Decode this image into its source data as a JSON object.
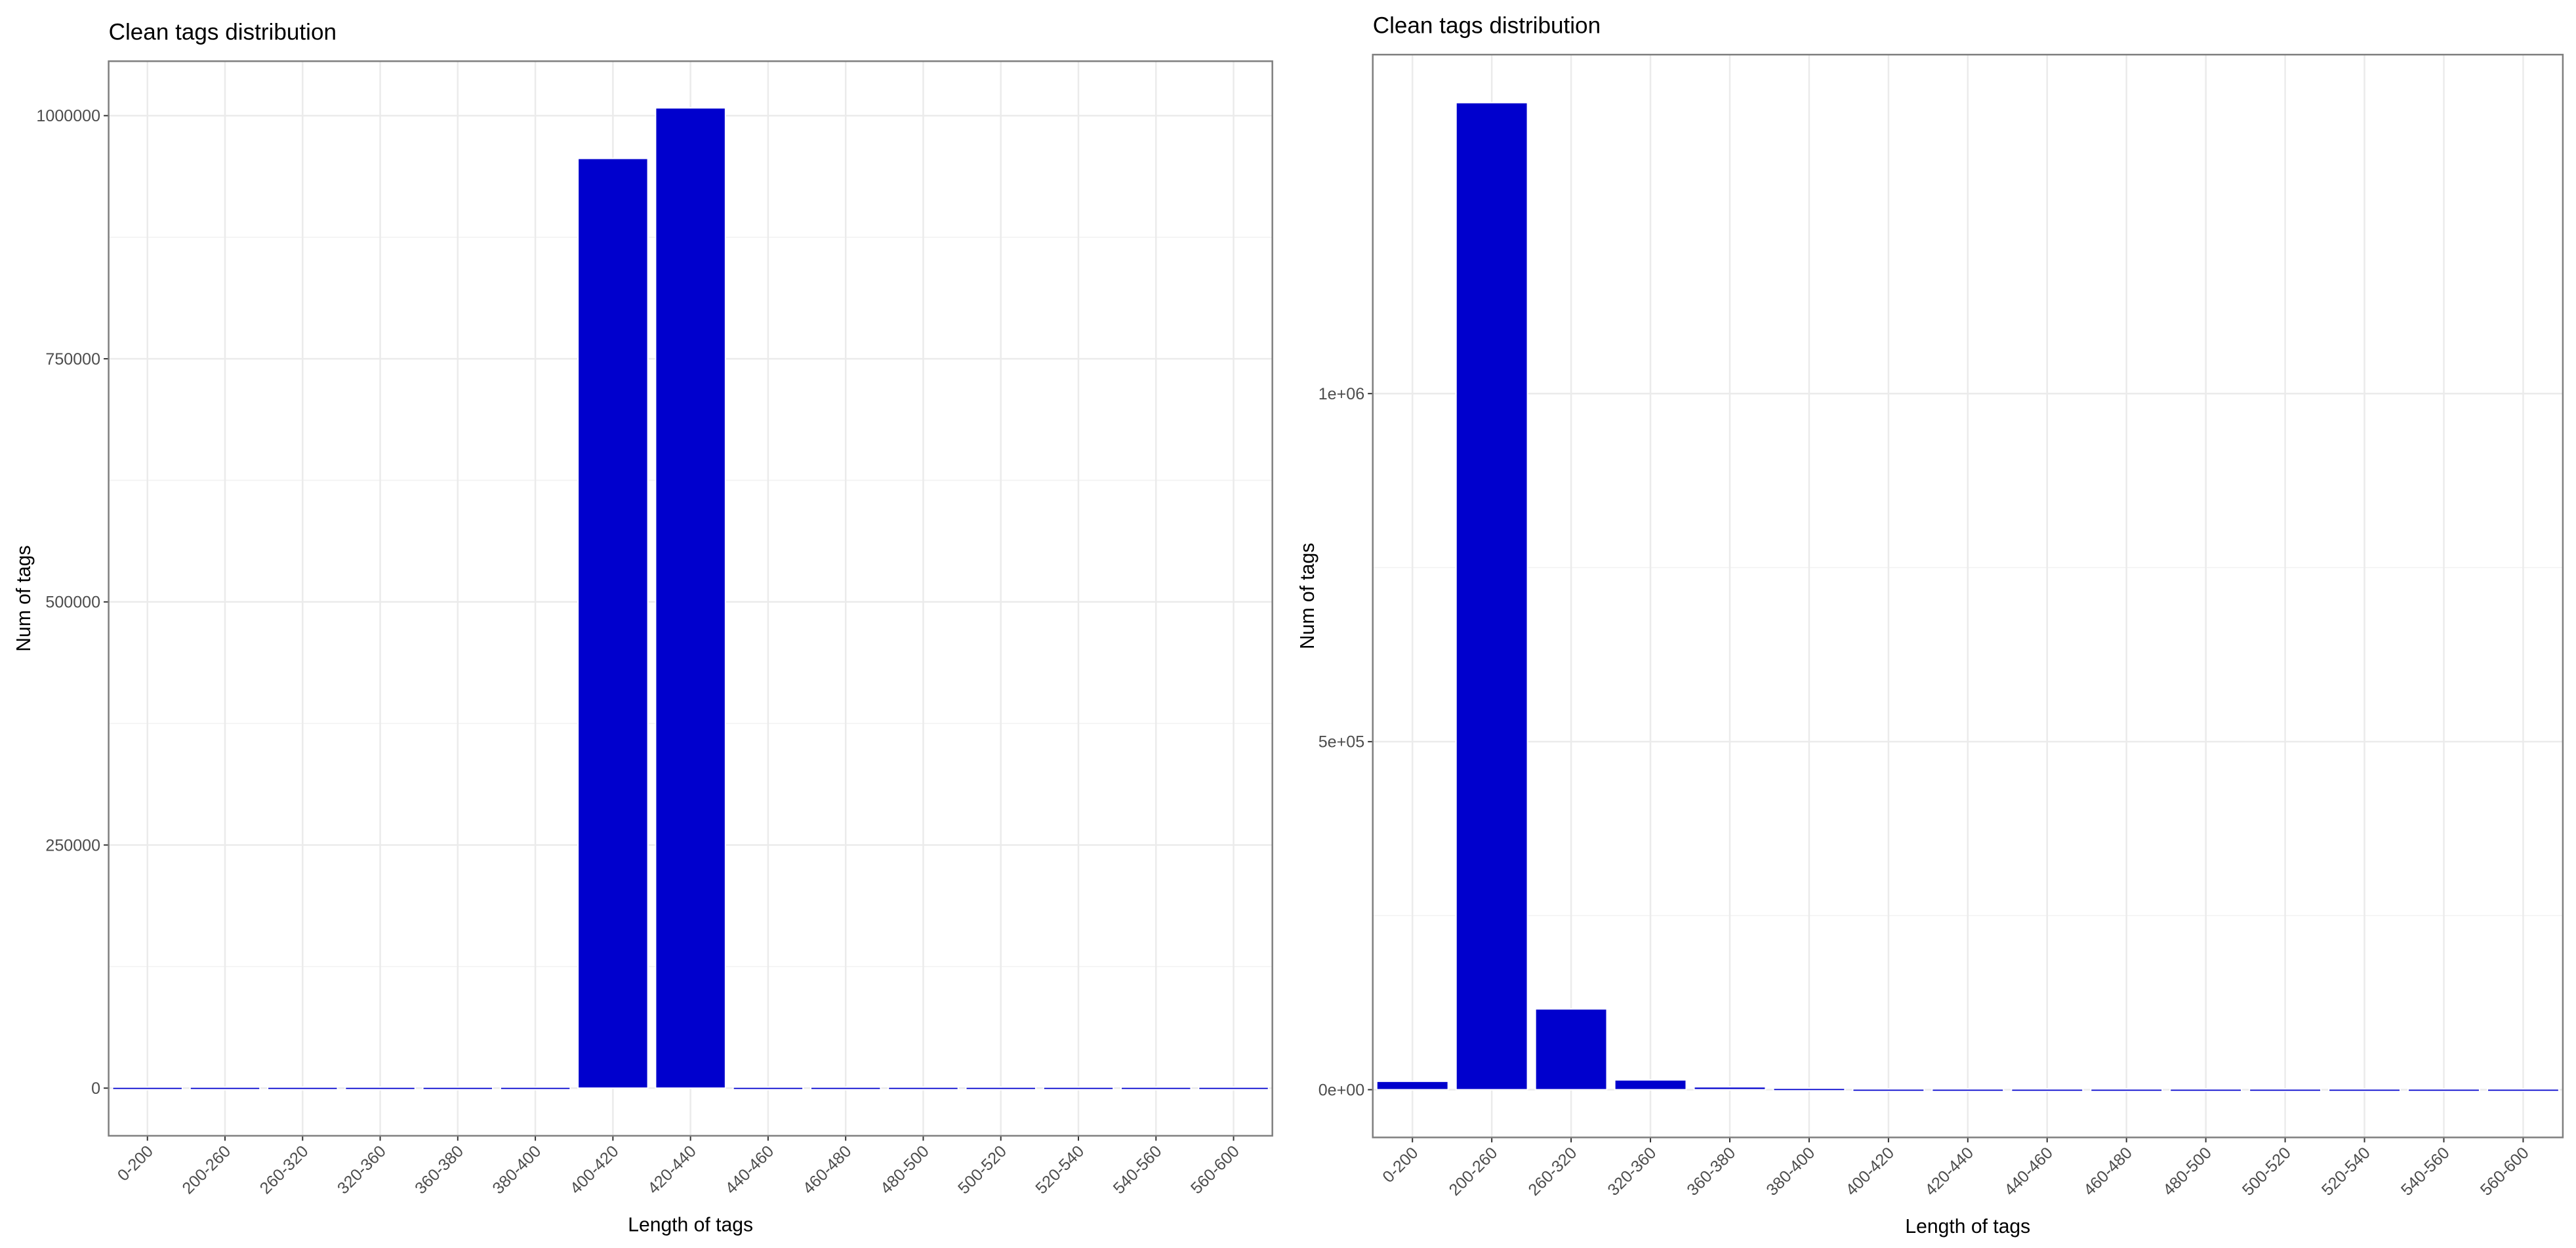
{
  "chart_data": [
    {
      "type": "bar",
      "title": "Clean tags distribution",
      "x_label": "Length of tags",
      "y_label": "Num of tags",
      "categories": [
        "0-200",
        "200-260",
        "260-320",
        "320-360",
        "360-380",
        "380-400",
        "400-420",
        "420-440",
        "440-460",
        "460-480",
        "480-500",
        "500-520",
        "520-540",
        "540-560",
        "560-600"
      ],
      "values": [
        1000,
        1000,
        1000,
        1000,
        1000,
        1000,
        956000,
        1008000,
        1000,
        1000,
        1000,
        1000,
        1000,
        1000,
        1000
      ],
      "color": "#0000cd",
      "ylim": [
        -49000,
        1056000
      ],
      "yticks": [
        0,
        250000,
        500000,
        750000,
        1000000
      ],
      "grid": true
    },
    {
      "type": "bar",
      "title": "Clean tags distribution",
      "x_label": "Length of tags",
      "y_label": "Num of tags",
      "categories": [
        "0-200",
        "200-260",
        "260-320",
        "320-360",
        "360-380",
        "380-400",
        "400-420",
        "420-440",
        "440-460",
        "460-480",
        "480-500",
        "500-520",
        "520-540",
        "540-560",
        "560-600"
      ],
      "values": [
        12000,
        1418000,
        116000,
        14000,
        4000,
        2000,
        1000,
        1000,
        1000,
        1000,
        1000,
        1000,
        1000,
        1000,
        1000
      ],
      "color": "#0000cd",
      "ylim": [
        -68600,
        1487000
      ],
      "yticks": [
        {
          "value": 0,
          "label": "0e+00"
        },
        {
          "value": 500000,
          "label": "5e+05"
        },
        {
          "value": 1000000,
          "label": "1e+06"
        }
      ],
      "grid": true
    }
  ]
}
